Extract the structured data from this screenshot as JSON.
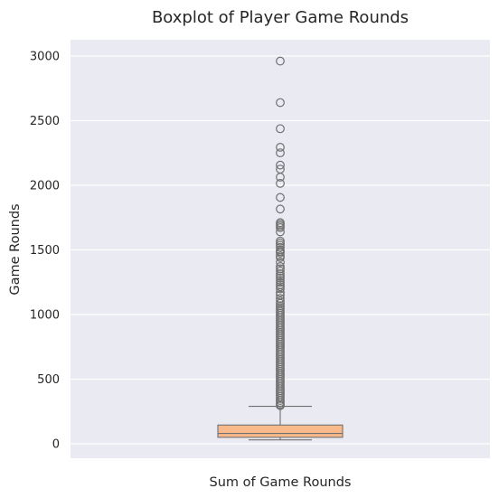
{
  "chart_data": {
    "type": "boxplot",
    "title": "Boxplot of Player Game Rounds",
    "xlabel": "Sum of Game Rounds",
    "ylabel": "Game Rounds",
    "ylim": [
      -100,
      3100
    ],
    "yticks": [
      0,
      500,
      1000,
      1500,
      2000,
      2500,
      3000
    ],
    "grid": true,
    "legend": "none",
    "colors": {
      "background": "#eaeaf2",
      "grid": "#ffffff",
      "box_fill": "#f8ba8b",
      "box_edge": "#707070",
      "outlier_edge": "#707070"
    },
    "series": [
      {
        "box": {
          "whisker_low": 30,
          "q1": 50,
          "median": 80,
          "q3": 145,
          "whisker_high": 290
        },
        "outliers": [
          2961,
          2640,
          2438,
          2294,
          2251,
          2156,
          2125,
          2063,
          2015,
          1906,
          1816,
          1711,
          1698,
          1685,
          1672,
          1640,
          1568,
          1552,
          1536,
          1520,
          1499,
          1487,
          1476,
          1453,
          1441,
          1405,
          1371,
          1354,
          1336,
          1315,
          1298,
          1283,
          1265,
          1248,
          1231,
          1215,
          1199,
          1170,
          1150,
          1125,
          1104,
          1087,
          1068,
          1055,
          1040,
          1025,
          1011,
          995,
          980,
          965,
          950,
          935,
          920,
          905,
          890,
          875,
          860,
          845,
          830,
          815,
          800,
          785,
          770,
          755,
          740,
          725,
          710,
          695,
          680,
          665,
          650,
          635,
          620,
          605,
          590,
          575,
          560,
          545,
          530,
          515,
          500,
          485,
          470,
          455,
          440,
          425,
          410,
          395,
          380,
          365,
          350,
          335,
          320,
          305,
          295
        ]
      }
    ]
  }
}
